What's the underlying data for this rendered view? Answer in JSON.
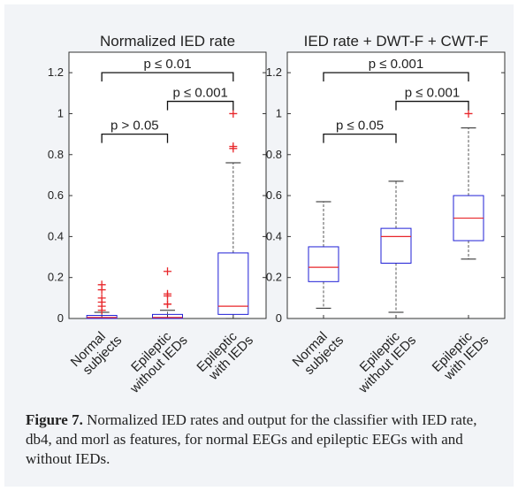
{
  "chart_data": [
    {
      "type": "box",
      "title": "Normalized IED rate",
      "ylim": [
        0,
        1.3
      ],
      "yticks": [
        0,
        0.2,
        0.4,
        0.6,
        0.8,
        1,
        1.2
      ],
      "ytick_labels": [
        "0",
        "0.2",
        "0.4",
        "0.6",
        "0.8",
        "1",
        "1.2"
      ],
      "categories": [
        {
          "lines": [
            "Normal",
            "subjects"
          ]
        },
        {
          "lines": [
            "Epileptic",
            "without IEDs"
          ]
        },
        {
          "lines": [
            "Epileptic",
            "with IEDs"
          ]
        }
      ],
      "boxes": [
        {
          "min": 0,
          "q1": 0.0,
          "median": 0.005,
          "q3": 0.015,
          "max": 0.03,
          "outliers": [
            0.04,
            0.06,
            0.08,
            0.1,
            0.14,
            0.165
          ]
        },
        {
          "min": 0,
          "q1": 0.0,
          "median": 0.005,
          "q3": 0.02,
          "max": 0.04,
          "outliers": [
            0.07,
            0.07,
            0.11,
            0.12,
            0.23
          ]
        },
        {
          "min": 0,
          "q1": 0.02,
          "median": 0.06,
          "q3": 0.32,
          "max": 0.76,
          "outliers": [
            0.83,
            0.84,
            1.0
          ]
        }
      ],
      "significance": [
        {
          "from": 0,
          "to": 1,
          "y": 0.9,
          "label": "p > 0.05"
        },
        {
          "from": 1,
          "to": 2,
          "y": 1.06,
          "label": "p ≤ 0.001"
        },
        {
          "from": 0,
          "to": 2,
          "y": 1.2,
          "label": "p ≤ 0.01"
        }
      ],
      "grid": false
    },
    {
      "type": "box",
      "title": "IED rate + DWT-F + CWT-F",
      "ylim": [
        0,
        1.3
      ],
      "yticks": [
        0,
        0.2,
        0.4,
        0.6,
        0.8,
        1,
        1.2
      ],
      "ytick_labels": [
        "0",
        "0.2",
        "0.4",
        "0.6",
        "0.8",
        "1",
        "1.2"
      ],
      "categories": [
        {
          "lines": [
            "Normal",
            "subjects"
          ]
        },
        {
          "lines": [
            "Epileptic",
            "without IEDs"
          ]
        },
        {
          "lines": [
            "Epileptic",
            "with IEDs"
          ]
        }
      ],
      "boxes": [
        {
          "min": 0.05,
          "q1": 0.18,
          "median": 0.25,
          "q3": 0.35,
          "max": 0.57,
          "outliers": []
        },
        {
          "min": 0.03,
          "q1": 0.27,
          "median": 0.4,
          "q3": 0.44,
          "max": 0.67,
          "outliers": []
        },
        {
          "min": 0.29,
          "q1": 0.38,
          "median": 0.49,
          "q3": 0.6,
          "max": 0.93,
          "outliers": [
            1.0
          ]
        }
      ],
      "significance": [
        {
          "from": 0,
          "to": 1,
          "y": 0.9,
          "label": "p ≤ 0.05"
        },
        {
          "from": 1,
          "to": 2,
          "y": 1.06,
          "label": "p ≤ 0.001"
        },
        {
          "from": 0,
          "to": 2,
          "y": 1.2,
          "label": "p ≤ 0.001"
        }
      ],
      "grid": false
    }
  ],
  "caption": {
    "label": "Figure 7.",
    "text": " Normalized IED rates and output for the classifier with IED rate, db4, and morl as features, for normal EEGs and epileptic EEGs with and without IEDs."
  },
  "colors": {
    "box": "#1f1fd6",
    "median": "#e8262a",
    "outlier": "#e8262a",
    "axes": "#333333",
    "whisker": "#555555"
  }
}
